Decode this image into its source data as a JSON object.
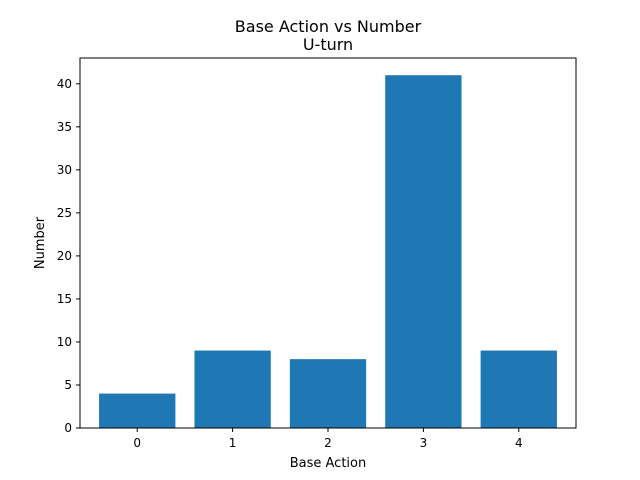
{
  "chart_data": {
    "type": "bar",
    "title": "Base Action vs Number",
    "subtitle": "U-turn",
    "xlabel": "Base Action",
    "ylabel": "Number",
    "categories": [
      "0",
      "1",
      "2",
      "3",
      "4"
    ],
    "values": [
      4,
      9,
      8,
      41,
      9
    ],
    "ylim": [
      0,
      43
    ],
    "yticks": [
      0,
      5,
      10,
      15,
      20,
      25,
      30,
      35,
      40
    ],
    "bar_color": "#1f77b4",
    "grid": false,
    "legend": "none"
  }
}
